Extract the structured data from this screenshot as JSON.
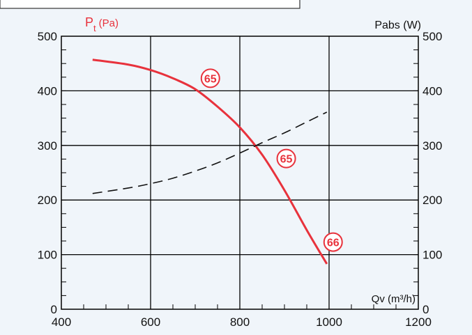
{
  "chart_data": {
    "type": "line",
    "xlabel": "Qv (m³/h)",
    "ylabel_left": "Pt (Pa)",
    "ylabel_left_main": "P",
    "ylabel_left_sub": "t",
    "ylabel_left_unit": "(Pa)",
    "ylabel_right": "Pabs (W)",
    "xlim": [
      400,
      1200
    ],
    "ylim": [
      0,
      500
    ],
    "xticks": [
      "400",
      "600",
      "800",
      "1000",
      "1200"
    ],
    "yticks": [
      "0",
      "100",
      "200",
      "300",
      "400",
      "500"
    ],
    "grid": true,
    "series": [
      {
        "style": "solid",
        "color": "#e8323c",
        "axis": "left",
        "x": [
          470,
          550,
          600,
          650,
          700,
          750,
          800,
          850,
          900,
          950,
          995
        ],
        "y": [
          457,
          448,
          438,
          423,
          403,
          371,
          333,
          283,
          218,
          145,
          83
        ]
      },
      {
        "style": "dashed",
        "color": "#111111",
        "axis": "right",
        "x": [
          470,
          550,
          600,
          650,
          700,
          750,
          800,
          850,
          900,
          950,
          995
        ],
        "y": [
          212,
          222,
          230,
          240,
          253,
          268,
          286,
          305,
          323,
          343,
          361
        ]
      }
    ],
    "annotations": [
      {
        "text": "65",
        "x": 734,
        "y": 423,
        "color": "#e8323c"
      },
      {
        "text": "65",
        "x": 904,
        "y": 276,
        "color": "#e8323c"
      },
      {
        "text": "66",
        "x": 1009,
        "y": 123,
        "color": "#e8323c"
      }
    ]
  },
  "colors": {
    "background": "#f0f5fa",
    "accent_red": "#e8323c",
    "axis": "#000000"
  }
}
